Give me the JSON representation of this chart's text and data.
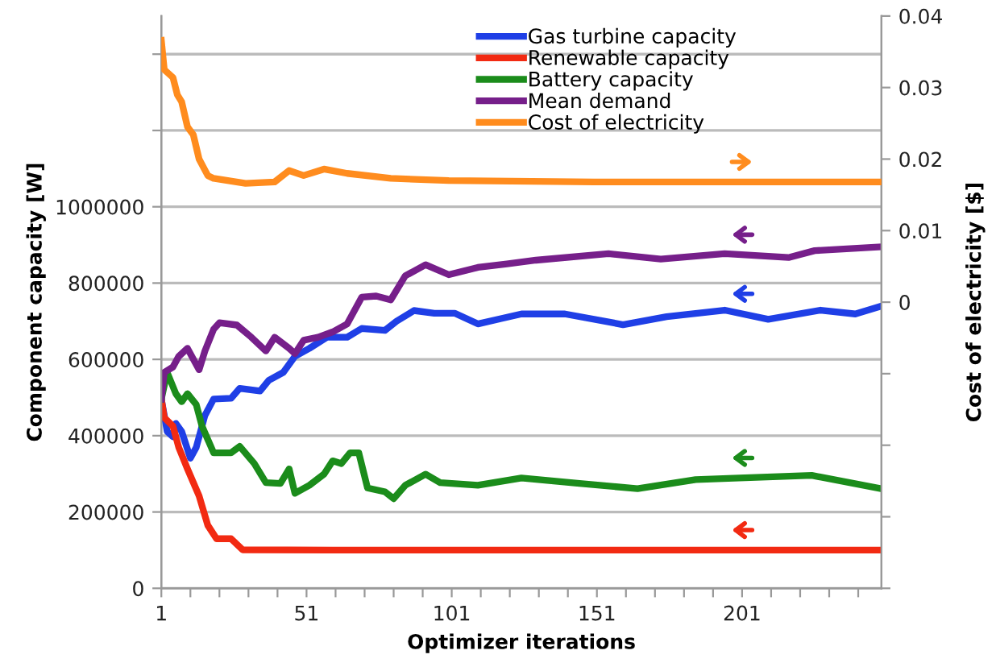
{
  "chart_data": {
    "type": "line",
    "xlabel": "Optimizer iterations",
    "ylabel": "Component capacity [W]",
    "y2label": "Cost of electricity [$]",
    "xlim": [
      1,
      249
    ],
    "xticks": [
      1,
      {
        "value": 11,
        "label": null
      },
      {
        "value": 21,
        "label": null
      },
      {
        "value": 31,
        "label": null
      },
      {
        "value": 41,
        "label": null
      },
      51,
      {
        "value": 61,
        "label": null
      },
      {
        "value": 71,
        "label": null
      },
      {
        "value": 81,
        "label": null
      },
      {
        "value": 91,
        "label": null
      },
      101,
      {
        "value": 111,
        "label": null
      },
      {
        "value": 121,
        "label": null
      },
      {
        "value": 131,
        "label": null
      },
      {
        "value": 141,
        "label": null
      },
      151,
      {
        "value": 161,
        "label": null
      },
      {
        "value": 171,
        "label": null
      },
      {
        "value": 181,
        "label": null
      },
      {
        "value": 191,
        "label": null
      },
      201,
      {
        "value": 211,
        "label": null
      },
      {
        "value": 221,
        "label": null
      },
      {
        "value": 231,
        "label": null
      },
      {
        "value": 241,
        "label": null
      }
    ],
    "ylim": [
      0,
      1500000
    ],
    "yticks": [
      0,
      200000,
      400000,
      600000,
      800000,
      1000000,
      {
        "value": 1200000,
        "label": null
      },
      {
        "value": 1400000,
        "label": null
      }
    ],
    "y2lim": [
      -0.04,
      0.04
    ],
    "y2ticks": [
      {
        "value": -0.04,
        "label": null
      },
      {
        "value": -0.03,
        "label": null
      },
      {
        "value": -0.02,
        "label": null
      },
      {
        "value": -0.01,
        "label": null
      },
      0,
      0.01,
      0.02,
      0.03,
      0.04
    ],
    "grid": "y",
    "legend": "top",
    "marker": "none",
    "line_style": "solid",
    "series": [
      {
        "name": "Gas turbine capacity",
        "color": "#1f3fe6",
        "x": [
          1,
          3,
          5,
          6,
          8,
          11,
          13,
          16,
          19,
          25,
          28,
          35,
          38,
          43,
          47,
          52,
          58,
          65,
          70,
          78,
          82,
          88,
          95,
          102,
          110,
          118,
          125,
          140,
          160,
          175,
          195,
          210,
          228,
          240,
          249
        ],
        "values": [
          496000,
          411000,
          397000,
          432000,
          411000,
          341000,
          369000,
          453000,
          496000,
          498000,
          524000,
          517000,
          545000,
          566000,
          608000,
          629000,
          658000,
          658000,
          681000,
          676000,
          700000,
          728000,
          721000,
          721000,
          693000,
          707000,
          719000,
          719000,
          691000,
          712000,
          729000,
          705000,
          729000,
          719000,
          740000
        ]
      },
      {
        "name": "Renewable capacity",
        "color": "#f22a12",
        "x": [
          1,
          2,
          5,
          7,
          10,
          14,
          17,
          20,
          25,
          29,
          60,
          120,
          180,
          249
        ],
        "values": [
          496000,
          447000,
          425000,
          369000,
          313000,
          242000,
          165000,
          130000,
          130000,
          101000,
          100000,
          100000,
          100000,
          100000
        ]
      },
      {
        "name": "Battery capacity",
        "color": "#1b8c1b",
        "x": [
          1,
          3,
          6,
          8,
          10,
          13,
          15,
          19,
          25,
          28,
          33,
          37,
          42,
          45,
          47,
          52,
          57,
          60,
          63,
          66,
          69,
          72,
          78,
          81,
          85,
          92,
          97,
          110,
          125,
          145,
          165,
          185,
          200,
          225,
          249
        ],
        "values": [
          496000,
          566000,
          510000,
          489000,
          510000,
          482000,
          425000,
          355000,
          355000,
          372000,
          327000,
          277000,
          275000,
          313000,
          249000,
          270000,
          299000,
          334000,
          327000,
          355000,
          355000,
          263000,
          253000,
          235000,
          270000,
          299000,
          277000,
          270000,
          289000,
          275000,
          261000,
          285000,
          289000,
          296000,
          261000
        ]
      },
      {
        "name": "Mean demand",
        "color": "#761f8a",
        "x": [
          1,
          2,
          5,
          7,
          10,
          12,
          14,
          16,
          19,
          21,
          27,
          32,
          37,
          40,
          45,
          47,
          50,
          55,
          60,
          65,
          70,
          75,
          80,
          85,
          92,
          100,
          110,
          120,
          130,
          155,
          173,
          195,
          217,
          226,
          249
        ],
        "values": [
          496000,
          566000,
          580000,
          608000,
          629000,
          601000,
          573000,
          622000,
          679000,
          696000,
          690000,
          658000,
          622000,
          658000,
          629000,
          615000,
          650000,
          658000,
          672000,
          693000,
          763000,
          766000,
          756000,
          819000,
          848000,
          822000,
          841000,
          850000,
          860000,
          877000,
          863000,
          877000,
          867000,
          885000,
          895000
        ]
      },
      {
        "name": "Cost of electricity",
        "color": "#ff8c1e",
        "axis": "y2",
        "x": [
          1,
          2,
          5,
          6.5,
          8,
          10,
          12,
          14,
          17,
          19,
          30,
          40,
          45,
          50,
          57,
          65,
          80,
          100,
          150,
          249
        ],
        "values": [
          0.0366,
          0.0325,
          0.0314,
          0.029,
          0.028,
          0.0245,
          0.0234,
          0.02,
          0.0177,
          0.0173,
          0.0166,
          0.0168,
          0.0184,
          0.0177,
          0.0186,
          0.018,
          0.0173,
          0.017,
          0.0168,
          0.0168
        ]
      }
    ]
  }
}
